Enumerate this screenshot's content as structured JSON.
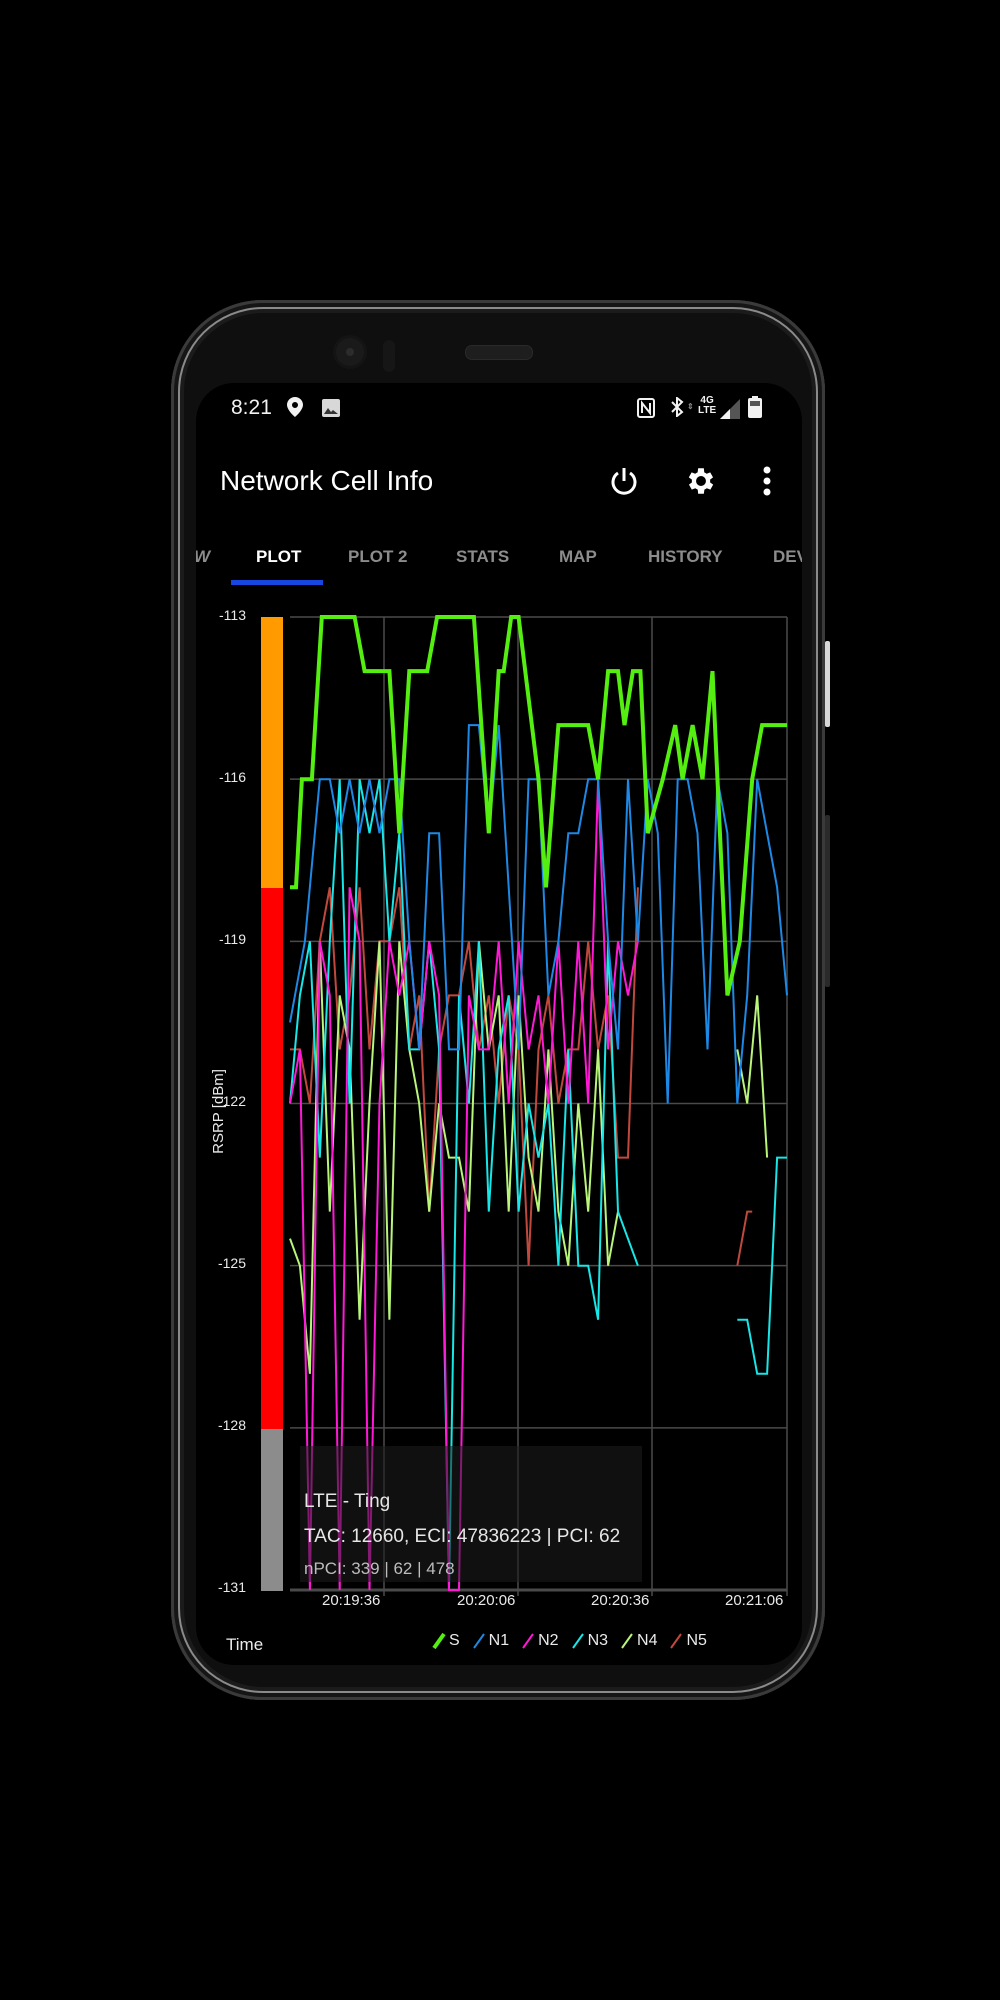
{
  "status_bar": {
    "time": "8:21",
    "left_icons": [
      "location-pin-icon",
      "image-icon"
    ],
    "right_icons": [
      "nfc-icon",
      "bluetooth-icon",
      "lte-4g-icon",
      "signal-icon",
      "battery-icon"
    ],
    "network_label_top": "4G",
    "network_label_bottom": "LTE"
  },
  "app_bar": {
    "title": "Network Cell Info",
    "actions": [
      "power-icon",
      "settings-gear-icon",
      "more-vert-icon"
    ]
  },
  "tabs": [
    {
      "label": "W",
      "active": false
    },
    {
      "label": "PLOT",
      "active": true
    },
    {
      "label": "PLOT 2",
      "active": false
    },
    {
      "label": "STATS",
      "active": false
    },
    {
      "label": "MAP",
      "active": false
    },
    {
      "label": "HISTORY",
      "active": false
    },
    {
      "label": "DEV",
      "active": false
    }
  ],
  "colors": {
    "tab_indicator": "#1846e0",
    "bar_orange": "#ff9a00",
    "bar_red": "#ff0000",
    "bar_gray": "#8c8c8c",
    "grid": "#4a4a4a"
  },
  "info_box": {
    "line1": "LTE - Ting",
    "line2": "TAC: 12660, ECI: 47836223 | PCI: 62",
    "line3": "nPCI: 339 | 62 | 478"
  },
  "footer": {
    "time_label": "Time"
  },
  "chart_data": {
    "type": "line",
    "title": "",
    "xlabel": "Time",
    "ylabel": "RSRP [dBm]",
    "ylim": [
      -131,
      -113
    ],
    "yticks": [
      "-113",
      "-116",
      "-119",
      "-122",
      "-125",
      "-128",
      "-131"
    ],
    "xticks": [
      "20:19:36",
      "20:20:06",
      "20:20:36",
      "20:21:06"
    ],
    "grid": true,
    "legend_position": "bottom",
    "quality_bands": [
      {
        "from": -113,
        "to": -118,
        "color": "#ff9a00"
      },
      {
        "from": -118,
        "to": -128,
        "color": "#ff0000"
      },
      {
        "from": -128,
        "to": -131,
        "color": "#8c8c8c"
      }
    ],
    "x_note": "x is fraction of plot width (0 = left edge, 1 = right edge at 20:21:06)",
    "series": [
      {
        "name": "S",
        "color": "#55ee11",
        "width": 4,
        "points": [
          [
            0.0,
            -118
          ],
          [
            0.012,
            -118
          ],
          [
            0.024,
            -116
          ],
          [
            0.044,
            -116
          ],
          [
            0.064,
            -113
          ],
          [
            0.13,
            -113
          ],
          [
            0.15,
            -114
          ],
          [
            0.2,
            -114
          ],
          [
            0.22,
            -117
          ],
          [
            0.24,
            -114
          ],
          [
            0.276,
            -114
          ],
          [
            0.296,
            -113
          ],
          [
            0.37,
            -113
          ],
          [
            0.4,
            -117
          ],
          [
            0.42,
            -114
          ],
          [
            0.43,
            -114
          ],
          [
            0.445,
            -113
          ],
          [
            0.46,
            -113
          ],
          [
            0.5,
            -116
          ],
          [
            0.515,
            -118
          ],
          [
            0.54,
            -115
          ],
          [
            0.548,
            -115
          ],
          [
            0.6,
            -115
          ],
          [
            0.62,
            -116
          ],
          [
            0.64,
            -114
          ],
          [
            0.66,
            -114
          ],
          [
            0.673,
            -115
          ],
          [
            0.69,
            -114
          ],
          [
            0.705,
            -114
          ],
          [
            0.72,
            -117
          ],
          [
            0.75,
            -116
          ],
          [
            0.775,
            -115
          ],
          [
            0.79,
            -116
          ],
          [
            0.81,
            -115
          ],
          [
            0.83,
            -116
          ],
          [
            0.85,
            -114
          ],
          [
            0.88,
            -120
          ],
          [
            0.905,
            -119
          ],
          [
            0.93,
            -116
          ],
          [
            0.95,
            -115
          ],
          [
            1.0,
            -115
          ]
        ]
      },
      {
        "name": "N1",
        "color": "#1e88e5",
        "width": 2,
        "points": [
          [
            0.0,
            -120.5
          ],
          [
            0.03,
            -119
          ],
          [
            0.06,
            -116
          ],
          [
            0.08,
            -116
          ],
          [
            0.1,
            -117
          ],
          [
            0.12,
            -116
          ],
          [
            0.14,
            -117
          ],
          [
            0.16,
            -116
          ],
          [
            0.18,
            -117
          ],
          [
            0.2,
            -116
          ],
          [
            0.22,
            -116
          ],
          [
            0.24,
            -119
          ],
          [
            0.26,
            -121
          ],
          [
            0.28,
            -117
          ],
          [
            0.3,
            -117
          ],
          [
            0.32,
            -121
          ],
          [
            0.34,
            -121
          ],
          [
            0.36,
            -115
          ],
          [
            0.38,
            -115
          ],
          [
            0.4,
            -117
          ],
          [
            0.42,
            -115
          ],
          [
            0.44,
            -118
          ],
          [
            0.46,
            -121
          ],
          [
            0.48,
            -116
          ],
          [
            0.5,
            -116
          ],
          [
            0.52,
            -120
          ],
          [
            0.54,
            -119
          ],
          [
            0.56,
            -117
          ],
          [
            0.58,
            -117
          ],
          [
            0.6,
            -116
          ],
          [
            0.62,
            -116
          ],
          [
            0.64,
            -119
          ],
          [
            0.66,
            -121
          ],
          [
            0.68,
            -116
          ],
          [
            0.7,
            -119
          ],
          [
            0.72,
            -116
          ],
          [
            0.74,
            -117
          ],
          [
            0.76,
            -122
          ],
          [
            0.78,
            -116
          ],
          [
            0.8,
            -116
          ],
          [
            0.82,
            -117
          ],
          [
            0.84,
            -121
          ],
          [
            0.86,
            -116
          ],
          [
            0.88,
            -117
          ],
          [
            0.9,
            -122
          ],
          [
            0.92,
            -120
          ],
          [
            0.94,
            -116
          ],
          [
            0.96,
            -117
          ],
          [
            0.98,
            -118
          ],
          [
            1.0,
            -120
          ]
        ]
      },
      {
        "name": "N2",
        "color": "#ff19d6",
        "width": 2,
        "points": [
          [
            0.0,
            -122
          ],
          [
            0.02,
            -121
          ],
          [
            0.04,
            -131
          ],
          [
            0.06,
            -119
          ],
          [
            0.08,
            -120
          ],
          [
            0.1,
            -131
          ],
          [
            0.12,
            -118
          ],
          [
            0.14,
            -119
          ],
          [
            0.16,
            -131
          ],
          [
            0.18,
            -122
          ],
          [
            0.2,
            -119
          ],
          [
            0.22,
            -120
          ],
          [
            0.24,
            -119
          ],
          [
            0.26,
            -121
          ],
          [
            0.28,
            -119
          ],
          [
            0.3,
            -120
          ],
          [
            0.32,
            -131
          ],
          [
            0.34,
            -131
          ],
          [
            0.36,
            -120
          ],
          [
            0.38,
            -121
          ],
          [
            0.4,
            -121
          ],
          [
            0.42,
            -119
          ],
          [
            0.44,
            -122
          ],
          [
            0.46,
            -119
          ],
          [
            0.48,
            -121
          ],
          [
            0.5,
            -120
          ],
          [
            0.52,
            -122
          ],
          [
            0.54,
            -119
          ],
          [
            0.56,
            -122
          ],
          [
            0.58,
            -119
          ],
          [
            0.6,
            -122
          ],
          [
            0.62,
            -116
          ],
          [
            0.64,
            -121
          ],
          [
            0.66,
            -119
          ],
          [
            0.68,
            -120
          ],
          [
            0.7,
            -119
          ]
        ]
      },
      {
        "name": "N3",
        "color": "#19e6e6",
        "width": 2,
        "points": [
          [
            0.0,
            -122
          ],
          [
            0.02,
            -120
          ],
          [
            0.04,
            -119
          ],
          [
            0.06,
            -123
          ],
          [
            0.08,
            -119
          ],
          [
            0.1,
            -116
          ],
          [
            0.12,
            -122
          ],
          [
            0.14,
            -116
          ],
          [
            0.16,
            -117
          ],
          [
            0.18,
            -116
          ],
          [
            0.2,
            -119
          ],
          [
            0.22,
            -117
          ],
          [
            0.24,
            -121
          ],
          [
            0.26,
            -121
          ],
          [
            0.28,
            -119
          ],
          [
            0.3,
            -121
          ],
          [
            0.32,
            -131
          ],
          [
            0.34,
            -120
          ],
          [
            0.36,
            -122
          ],
          [
            0.38,
            -119
          ],
          [
            0.4,
            -124
          ],
          [
            0.42,
            -121
          ],
          [
            0.44,
            -120
          ],
          [
            0.46,
            -124
          ],
          [
            0.48,
            -122
          ],
          [
            0.5,
            -123
          ],
          [
            0.52,
            -122
          ],
          [
            0.54,
            -125
          ],
          [
            0.56,
            -121
          ],
          [
            0.58,
            -125
          ],
          [
            0.6,
            -125
          ],
          [
            0.62,
            -126
          ],
          [
            0.64,
            -119
          ],
          [
            0.66,
            -124
          ],
          [
            0.7,
            -125
          ]
        ],
        "tail": [
          [
            0.9,
            -126
          ],
          [
            0.92,
            -126
          ],
          [
            0.94,
            -127
          ],
          [
            0.96,
            -127
          ],
          [
            0.98,
            -123
          ],
          [
            1.0,
            -123
          ]
        ]
      },
      {
        "name": "N4",
        "color": "#b8f57a",
        "width": 2,
        "points": [
          [
            0.0,
            -124.5
          ],
          [
            0.02,
            -125
          ],
          [
            0.04,
            -127
          ],
          [
            0.06,
            -119
          ],
          [
            0.08,
            -124
          ],
          [
            0.1,
            -120
          ],
          [
            0.12,
            -121
          ],
          [
            0.14,
            -126
          ],
          [
            0.16,
            -122
          ],
          [
            0.18,
            -119
          ],
          [
            0.2,
            -126
          ],
          [
            0.22,
            -119
          ],
          [
            0.24,
            -121
          ],
          [
            0.26,
            -122
          ],
          [
            0.28,
            -124
          ],
          [
            0.3,
            -122
          ],
          [
            0.32,
            -123
          ],
          [
            0.34,
            -123
          ],
          [
            0.36,
            -124
          ],
          [
            0.38,
            -119
          ],
          [
            0.4,
            -121
          ],
          [
            0.42,
            -120
          ],
          [
            0.44,
            -124
          ],
          [
            0.46,
            -120
          ],
          [
            0.48,
            -123
          ],
          [
            0.5,
            -124
          ],
          [
            0.52,
            -121
          ],
          [
            0.54,
            -124
          ],
          [
            0.56,
            -125
          ],
          [
            0.58,
            -122
          ],
          [
            0.6,
            -124
          ],
          [
            0.62,
            -121
          ],
          [
            0.64,
            -125
          ],
          [
            0.66,
            -124
          ]
        ],
        "tail": [
          [
            0.9,
            -121
          ],
          [
            0.92,
            -122
          ],
          [
            0.94,
            -120
          ],
          [
            0.96,
            -123
          ]
        ]
      },
      {
        "name": "N5",
        "color": "#c0483d",
        "width": 2,
        "points": [
          [
            0.0,
            -121
          ],
          [
            0.02,
            -121
          ],
          [
            0.04,
            -122
          ],
          [
            0.06,
            -119
          ],
          [
            0.08,
            -118
          ],
          [
            0.1,
            -121
          ],
          [
            0.12,
            -120
          ],
          [
            0.14,
            -118
          ],
          [
            0.16,
            -121
          ],
          [
            0.18,
            -119
          ],
          [
            0.2,
            -119
          ],
          [
            0.22,
            -118
          ],
          [
            0.24,
            -121
          ],
          [
            0.26,
            -120
          ],
          [
            0.28,
            -124
          ],
          [
            0.3,
            -121
          ],
          [
            0.32,
            -120
          ],
          [
            0.34,
            -120
          ],
          [
            0.36,
            -119
          ],
          [
            0.38,
            -121
          ],
          [
            0.4,
            -120
          ],
          [
            0.42,
            -122
          ],
          [
            0.44,
            -120
          ],
          [
            0.46,
            -121
          ],
          [
            0.48,
            -125
          ],
          [
            0.5,
            -121
          ],
          [
            0.52,
            -120
          ],
          [
            0.54,
            -122
          ],
          [
            0.56,
            -121
          ],
          [
            0.58,
            -121
          ],
          [
            0.6,
            -119
          ],
          [
            0.62,
            -121
          ],
          [
            0.64,
            -120
          ],
          [
            0.66,
            -123
          ],
          [
            0.68,
            -123
          ],
          [
            0.7,
            -118
          ]
        ],
        "tail": [
          [
            0.9,
            -125
          ],
          [
            0.92,
            -124
          ],
          [
            0.93,
            -124
          ]
        ]
      }
    ]
  }
}
